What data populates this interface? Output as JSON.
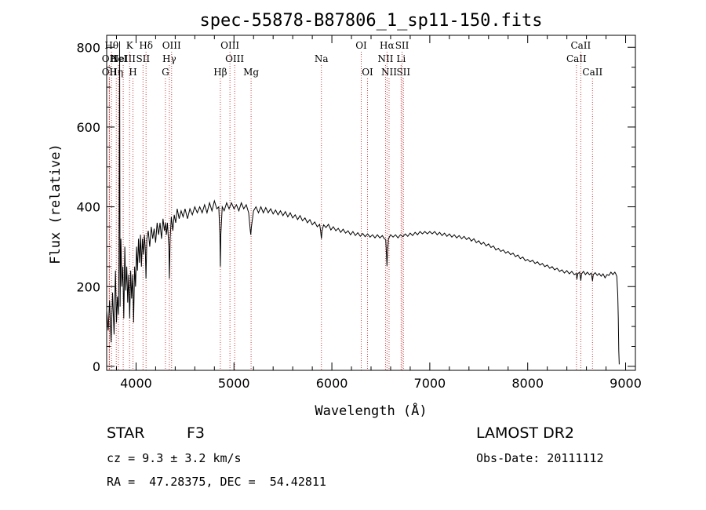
{
  "chart_data": {
    "type": "line",
    "title": "spec-55878-B87806_1_sp11-150.fits",
    "xlabel": "Wavelength (Å)",
    "ylabel": "Flux (relative)",
    "xlim": [
      3700,
      9100
    ],
    "ylim": [
      -10,
      830
    ],
    "xticks": [
      4000,
      5000,
      6000,
      7000,
      8000,
      9000
    ],
    "yticks": [
      0,
      200,
      400,
      600,
      800
    ],
    "grid": false,
    "series": [
      {
        "points": [
          [
            3700,
            140
          ],
          [
            3715,
            90
          ],
          [
            3730,
            165
          ],
          [
            3745,
            60
          ],
          [
            3760,
            185
          ],
          [
            3775,
            80
          ],
          [
            3790,
            240
          ],
          [
            3800,
            110
          ],
          [
            3810,
            175
          ],
          [
            3820,
            130
          ],
          [
            3826,
            260
          ],
          [
            3832,
            815
          ],
          [
            3837,
            150
          ],
          [
            3845,
            320
          ],
          [
            3855,
            200
          ],
          [
            3865,
            250
          ],
          [
            3875,
            120
          ],
          [
            3885,
            300
          ],
          [
            3895,
            190
          ],
          [
            3905,
            250
          ],
          [
            3915,
            160
          ],
          [
            3925,
            230
          ],
          [
            3935,
            120
          ],
          [
            3945,
            240
          ],
          [
            3955,
            170
          ],
          [
            3965,
            230
          ],
          [
            3975,
            110
          ],
          [
            3985,
            250
          ],
          [
            3995,
            200
          ],
          [
            4005,
            300
          ],
          [
            4015,
            240
          ],
          [
            4025,
            320
          ],
          [
            4035,
            260
          ],
          [
            4045,
            330
          ],
          [
            4055,
            250
          ],
          [
            4065,
            320
          ],
          [
            4075,
            280
          ],
          [
            4085,
            330
          ],
          [
            4095,
            290
          ],
          [
            4101,
            220
          ],
          [
            4110,
            320
          ],
          [
            4125,
            340
          ],
          [
            4140,
            300
          ],
          [
            4155,
            350
          ],
          [
            4170,
            320
          ],
          [
            4185,
            345
          ],
          [
            4200,
            310
          ],
          [
            4215,
            360
          ],
          [
            4230,
            330
          ],
          [
            4245,
            360
          ],
          [
            4260,
            320
          ],
          [
            4275,
            370
          ],
          [
            4290,
            340
          ],
          [
            4300,
            360
          ],
          [
            4310,
            330
          ],
          [
            4320,
            360
          ],
          [
            4335,
            300
          ],
          [
            4340,
            220
          ],
          [
            4348,
            320
          ],
          [
            4360,
            375
          ],
          [
            4375,
            340
          ],
          [
            4390,
            380
          ],
          [
            4405,
            360
          ],
          [
            4420,
            395
          ],
          [
            4440,
            370
          ],
          [
            4460,
            390
          ],
          [
            4480,
            375
          ],
          [
            4500,
            395
          ],
          [
            4525,
            370
          ],
          [
            4550,
            395
          ],
          [
            4575,
            380
          ],
          [
            4600,
            400
          ],
          [
            4625,
            385
          ],
          [
            4650,
            400
          ],
          [
            4675,
            385
          ],
          [
            4700,
            405
          ],
          [
            4725,
            385
          ],
          [
            4750,
            410
          ],
          [
            4775,
            390
          ],
          [
            4800,
            415
          ],
          [
            4825,
            395
          ],
          [
            4845,
            400
          ],
          [
            4856,
            330
          ],
          [
            4861,
            250
          ],
          [
            4866,
            330
          ],
          [
            4880,
            400
          ],
          [
            4900,
            390
          ],
          [
            4925,
            410
          ],
          [
            4950,
            395
          ],
          [
            4975,
            410
          ],
          [
            5000,
            395
          ],
          [
            5025,
            405
          ],
          [
            5050,
            390
          ],
          [
            5075,
            410
          ],
          [
            5100,
            395
          ],
          [
            5125,
            405
          ],
          [
            5150,
            385
          ],
          [
            5167,
            340
          ],
          [
            5172,
            330
          ],
          [
            5178,
            350
          ],
          [
            5200,
            390
          ],
          [
            5225,
            400
          ],
          [
            5250,
            385
          ],
          [
            5275,
            400
          ],
          [
            5300,
            385
          ],
          [
            5325,
            398
          ],
          [
            5350,
            385
          ],
          [
            5375,
            395
          ],
          [
            5400,
            382
          ],
          [
            5425,
            392
          ],
          [
            5450,
            380
          ],
          [
            5475,
            390
          ],
          [
            5500,
            378
          ],
          [
            5525,
            388
          ],
          [
            5550,
            375
          ],
          [
            5575,
            385
          ],
          [
            5600,
            372
          ],
          [
            5625,
            380
          ],
          [
            5650,
            368
          ],
          [
            5675,
            378
          ],
          [
            5700,
            365
          ],
          [
            5725,
            372
          ],
          [
            5750,
            360
          ],
          [
            5775,
            368
          ],
          [
            5800,
            355
          ],
          [
            5825,
            362
          ],
          [
            5850,
            350
          ],
          [
            5875,
            356
          ],
          [
            5885,
            340
          ],
          [
            5893,
            320
          ],
          [
            5900,
            340
          ],
          [
            5915,
            355
          ],
          [
            5940,
            348
          ],
          [
            5965,
            356
          ],
          [
            5990,
            342
          ],
          [
            6015,
            350
          ],
          [
            6040,
            340
          ],
          [
            6065,
            346
          ],
          [
            6090,
            336
          ],
          [
            6115,
            344
          ],
          [
            6140,
            334
          ],
          [
            6165,
            340
          ],
          [
            6190,
            330
          ],
          [
            6215,
            338
          ],
          [
            6240,
            328
          ],
          [
            6265,
            335
          ],
          [
            6290,
            326
          ],
          [
            6315,
            333
          ],
          [
            6340,
            325
          ],
          [
            6365,
            332
          ],
          [
            6390,
            324
          ],
          [
            6415,
            330
          ],
          [
            6440,
            322
          ],
          [
            6465,
            330
          ],
          [
            6490,
            322
          ],
          [
            6515,
            328
          ],
          [
            6535,
            320
          ],
          [
            6550,
            318
          ],
          [
            6558,
            280
          ],
          [
            6563,
            252
          ],
          [
            6568,
            285
          ],
          [
            6578,
            320
          ],
          [
            6600,
            330
          ],
          [
            6625,
            324
          ],
          [
            6650,
            330
          ],
          [
            6675,
            322
          ],
          [
            6700,
            330
          ],
          [
            6725,
            325
          ],
          [
            6750,
            332
          ],
          [
            6775,
            326
          ],
          [
            6800,
            334
          ],
          [
            6825,
            328
          ],
          [
            6850,
            336
          ],
          [
            6875,
            330
          ],
          [
            6900,
            338
          ],
          [
            6925,
            332
          ],
          [
            6950,
            338
          ],
          [
            6975,
            332
          ],
          [
            7000,
            338
          ],
          [
            7025,
            332
          ],
          [
            7050,
            338
          ],
          [
            7075,
            330
          ],
          [
            7100,
            336
          ],
          [
            7125,
            328
          ],
          [
            7150,
            334
          ],
          [
            7175,
            326
          ],
          [
            7200,
            332
          ],
          [
            7225,
            324
          ],
          [
            7250,
            330
          ],
          [
            7275,
            322
          ],
          [
            7300,
            328
          ],
          [
            7325,
            320
          ],
          [
            7350,
            326
          ],
          [
            7375,
            318
          ],
          [
            7400,
            323
          ],
          [
            7425,
            314
          ],
          [
            7450,
            320
          ],
          [
            7475,
            310
          ],
          [
            7500,
            315
          ],
          [
            7525,
            306
          ],
          [
            7550,
            311
          ],
          [
            7575,
            302
          ],
          [
            7600,
            307
          ],
          [
            7625,
            298
          ],
          [
            7650,
            302
          ],
          [
            7675,
            292
          ],
          [
            7700,
            296
          ],
          [
            7725,
            288
          ],
          [
            7750,
            292
          ],
          [
            7775,
            284
          ],
          [
            7800,
            288
          ],
          [
            7825,
            280
          ],
          [
            7850,
            284
          ],
          [
            7875,
            275
          ],
          [
            7900,
            279
          ],
          [
            7925,
            270
          ],
          [
            7950,
            274
          ],
          [
            7975,
            265
          ],
          [
            8000,
            268
          ],
          [
            8025,
            262
          ],
          [
            8050,
            266
          ],
          [
            8075,
            258
          ],
          [
            8100,
            262
          ],
          [
            8125,
            254
          ],
          [
            8150,
            258
          ],
          [
            8175,
            250
          ],
          [
            8200,
            254
          ],
          [
            8225,
            246
          ],
          [
            8250,
            250
          ],
          [
            8275,
            242
          ],
          [
            8300,
            246
          ],
          [
            8325,
            238
          ],
          [
            8350,
            242
          ],
          [
            8375,
            234
          ],
          [
            8400,
            240
          ],
          [
            8425,
            232
          ],
          [
            8450,
            238
          ],
          [
            8475,
            230
          ],
          [
            8498,
            233
          ],
          [
            8502,
            218
          ],
          [
            8510,
            232
          ],
          [
            8530,
            236
          ],
          [
            8542,
            215
          ],
          [
            8550,
            232
          ],
          [
            8570,
            238
          ],
          [
            8590,
            230
          ],
          [
            8610,
            236
          ],
          [
            8630,
            230
          ],
          [
            8650,
            234
          ],
          [
            8662,
            214
          ],
          [
            8670,
            230
          ],
          [
            8690,
            235
          ],
          [
            8710,
            228
          ],
          [
            8730,
            233
          ],
          [
            8750,
            226
          ],
          [
            8770,
            232
          ],
          [
            8790,
            222
          ],
          [
            8810,
            230
          ],
          [
            8830,
            228
          ],
          [
            8850,
            236
          ],
          [
            8870,
            230
          ],
          [
            8890,
            236
          ],
          [
            8900,
            232
          ],
          [
            8910,
            225
          ],
          [
            8920,
            180
          ],
          [
            8925,
            120
          ],
          [
            8930,
            40
          ],
          [
            8935,
            5
          ]
        ]
      }
    ],
    "lines": [
      {
        "wl": 3727,
        "label": "OII",
        "row": 1
      },
      {
        "wl": 3727,
        "label": "OII",
        "row": 2
      },
      {
        "wl": 3750,
        "label": "Hθ",
        "row": 0
      },
      {
        "wl": 3798,
        "label": "Hη",
        "row": 2
      },
      {
        "wl": 3820,
        "label": "HeI",
        "row": 1
      },
      {
        "wl": 3869,
        "label": "NeIII",
        "row": 1
      },
      {
        "wl": 3934,
        "label": "K",
        "row": 0
      },
      {
        "wl": 3968,
        "label": "H",
        "row": 2
      },
      {
        "wl": 4071,
        "label": "SII",
        "row": 1
      },
      {
        "wl": 4102,
        "label": "Hδ",
        "row": 0
      },
      {
        "wl": 4300,
        "label": "G",
        "row": 2
      },
      {
        "wl": 4340,
        "label": "Hγ",
        "row": 1
      },
      {
        "wl": 4363,
        "label": "OIII",
        "row": 0
      },
      {
        "wl": 4861,
        "label": "Hβ",
        "row": 2
      },
      {
        "wl": 4959,
        "label": "OIII",
        "row": 0
      },
      {
        "wl": 5007,
        "label": "OIII",
        "row": 1
      },
      {
        "wl": 5175,
        "label": "Mg",
        "row": 2
      },
      {
        "wl": 5893,
        "label": "Na",
        "row": 1
      },
      {
        "wl": 6300,
        "label": "OI",
        "row": 0
      },
      {
        "wl": 6364,
        "label": "OI",
        "row": 2
      },
      {
        "wl": 6548,
        "label": "NII",
        "row": 1
      },
      {
        "wl": 6563,
        "label": "Hα",
        "row": 0
      },
      {
        "wl": 6584,
        "label": "NII",
        "row": 2
      },
      {
        "wl": 6707,
        "label": "Li",
        "row": 1
      },
      {
        "wl": 6717,
        "label": "SII",
        "row": 0
      },
      {
        "wl": 6731,
        "label": "SII",
        "row": 2
      },
      {
        "wl": 8498,
        "label": "CaII",
        "row": 1
      },
      {
        "wl": 8542,
        "label": "CaII",
        "row": 0
      },
      {
        "wl": 8662,
        "label": "CaII",
        "row": 2
      }
    ]
  },
  "info": {
    "object_class": "STAR",
    "subclass": "F3",
    "survey": "LAMOST DR2",
    "redshift": "cz = 9.3 ± 3.2 km/s",
    "obs_date": "Obs-Date: 20111112",
    "coords": "RA =  47.28375, DEC =  54.42811"
  }
}
